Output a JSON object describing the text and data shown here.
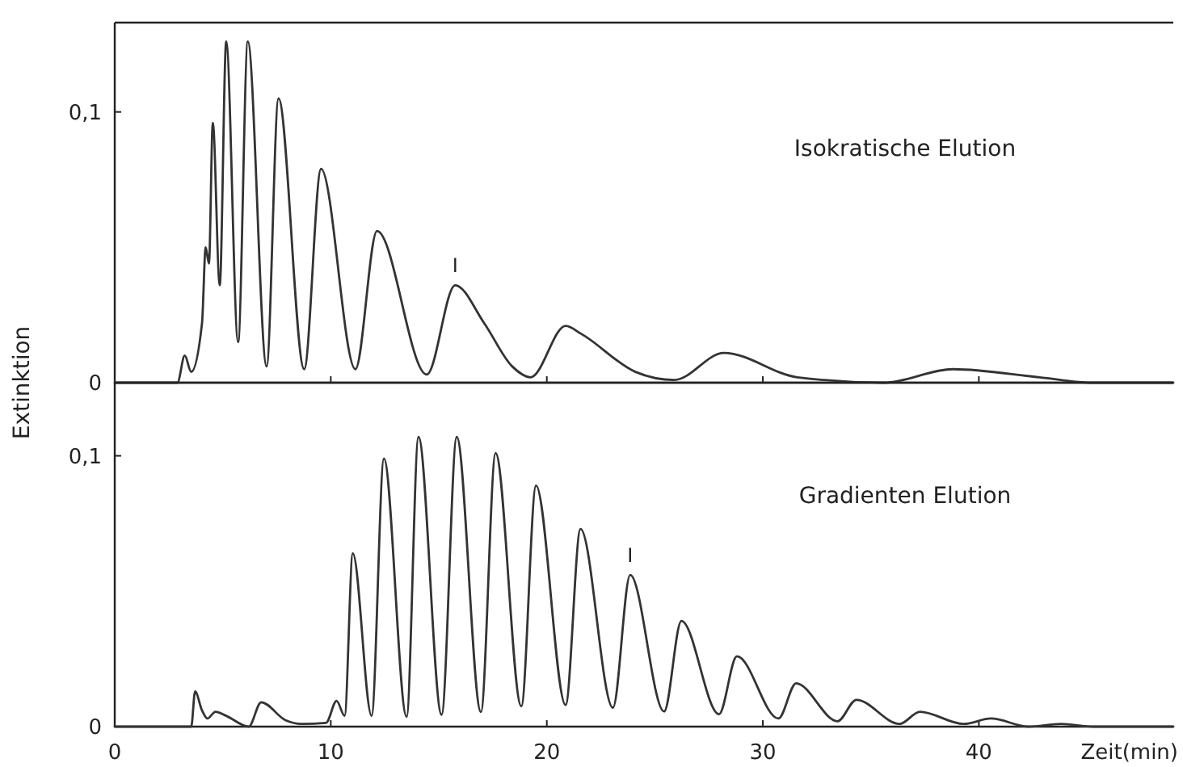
{
  "chart_data": [
    {
      "type": "line",
      "annotations": [
        "Isokratische Elution",
        {
          "text": "I",
          "x": 15.76,
          "y": 0.036
        }
      ],
      "xlim": [
        0,
        49
      ],
      "xticks": [
        {
          "value": 10,
          "label": null
        },
        {
          "value": 20,
          "label": null
        },
        {
          "value": 30,
          "label": null
        },
        {
          "value": 40,
          "label": null
        }
      ],
      "ylim": [
        0,
        0.133
      ],
      "yticks": [
        0,
        {
          "value": 0.1,
          "label": "0,1"
        }
      ],
      "tick_labels": "y",
      "series": [
        {
          "color": "#333333",
          "x": [
            0,
            2.9,
            3.24,
            3.54,
            4.04,
            4.21,
            4.36,
            4.54,
            4.86,
            5.16,
            5.71,
            6.16,
            7.03,
            7.58,
            8.77,
            9.55,
            11.14,
            12.14,
            14.44,
            15.76,
            17.1,
            18.4,
            19.25,
            20.87,
            21.6,
            24.1,
            25.9,
            28.2,
            31.6,
            35.6,
            38.8,
            42.8,
            45.3,
            49
          ],
          "values": [
            0,
            0,
            0.01,
            0.004,
            0.022,
            0.05,
            0.044,
            0.096,
            0.036,
            0.126,
            0.015,
            0.126,
            0.006,
            0.105,
            0.005,
            0.079,
            0.005,
            0.056,
            0.003,
            0.036,
            0.022,
            0.006,
            0.002,
            0.021,
            0.018,
            0.004,
            0.001,
            0.011,
            0.002,
            0,
            0.005,
            0.002,
            0,
            0
          ]
        }
      ]
    },
    {
      "type": "line",
      "xlabel": "Zeit(min)",
      "ylabel": "Extinktion",
      "annotations": [
        "Gradienten Elution",
        {
          "text": "I",
          "x": 23.86,
          "y": 0.056
        }
      ],
      "xlim": [
        0,
        49
      ],
      "xticks": [
        0,
        10,
        20,
        30,
        40
      ],
      "ylim": [
        0,
        0.127
      ],
      "yticks": [
        0,
        {
          "value": 0.1,
          "label": "0,1"
        }
      ],
      "series": [
        {
          "color": "#333333",
          "x": [
            0,
            3.54,
            3.72,
            4.04,
            4.29,
            4.66,
            5.16,
            6.2,
            6.78,
            7.9,
            8.65,
            9.78,
            10.27,
            10.64,
            11.02,
            11.89,
            12.46,
            13.51,
            14.06,
            15.13,
            15.83,
            16.95,
            17.63,
            18.82,
            19.5,
            20.87,
            21.56,
            23.06,
            23.86,
            25.43,
            26.23,
            27.97,
            28.8,
            30.72,
            31.54,
            33.46,
            34.33,
            36.33,
            37.27,
            39.3,
            40.56,
            42.3,
            43.8,
            45.3,
            49
          ],
          "values": [
            0,
            0,
            0.013,
            0.006,
            0.003,
            0.0055,
            0.004,
            0,
            0.009,
            0.0024,
            0.001,
            0.0014,
            0.0095,
            0.004,
            0.064,
            0.004,
            0.099,
            0.0036,
            0.107,
            0.0044,
            0.107,
            0.0054,
            0.101,
            0.0075,
            0.089,
            0.008,
            0.073,
            0.007,
            0.056,
            0.0056,
            0.039,
            0.0046,
            0.026,
            0.003,
            0.016,
            0.002,
            0.0099,
            0.001,
            0.0055,
            0.001,
            0.003,
            0,
            0.001,
            0,
            0
          ]
        }
      ]
    }
  ]
}
